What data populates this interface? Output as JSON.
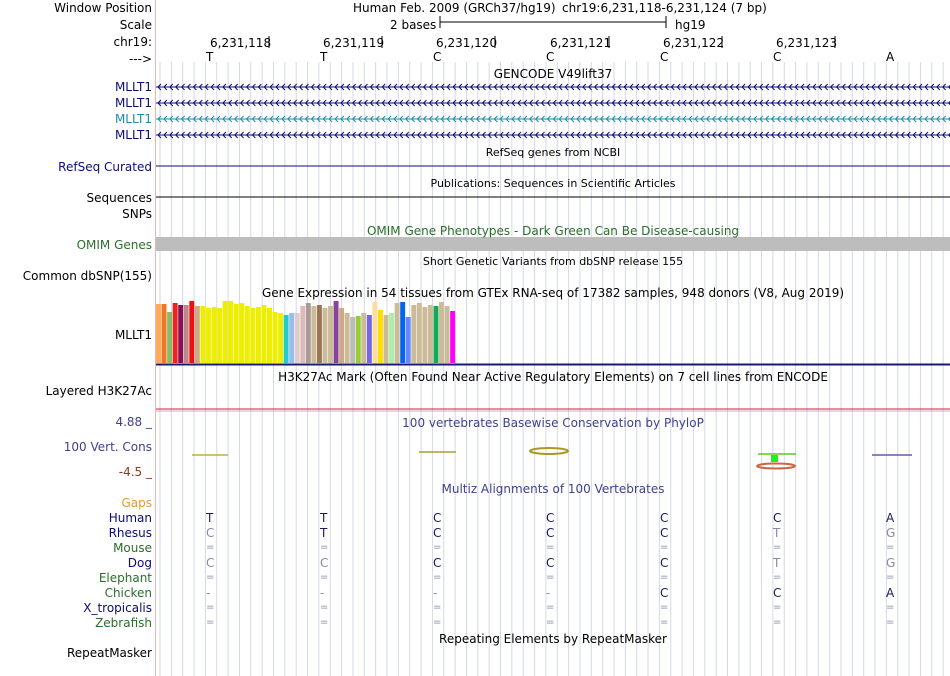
{
  "labels": {
    "window_position": "Window Position",
    "scale": "Scale",
    "chrom": "chr19:",
    "strand": "--->",
    "gencode_rows": [
      "MLLT1",
      "MLLT1",
      "MLLT1",
      "MLLT1"
    ],
    "refseq": "RefSeq Curated",
    "sequences": "Sequences",
    "snps": "SNPs",
    "omim": "OMIM Genes",
    "dbsnp": "Common dbSNP(155)",
    "gtex": "MLLT1",
    "h3k27ac": "Layered H3K27Ac",
    "cons_max": "4.88 _",
    "cons_name": "100 Vert. Cons",
    "cons_min": "-4.5 _",
    "gaps": "Gaps",
    "species": [
      "Human",
      "Rhesus",
      "Mouse",
      "Dog",
      "Elephant",
      "Chicken",
      "X_tropicalis",
      "Zebrafish"
    ],
    "repeatmasker": "RepeatMasker"
  },
  "header": {
    "assembly": "Human Feb. 2009 (GRCh37/hg19)",
    "position": "chr19:6,231,118-6,231,124 (7 bp)",
    "scale_text": "2 bases",
    "scale_db": "hg19",
    "coords": [
      "6,231,118",
      "6,231,119",
      "6,231,120",
      "6,231,121",
      "6,231,122",
      "6,231,123"
    ],
    "bases": [
      "T",
      "T",
      "C",
      "C",
      "C",
      "C",
      "A"
    ]
  },
  "tracks": {
    "gencode_title": "GENCODE V49lift37",
    "refseq_title": "RefSeq genes from NCBI",
    "publications_title": "Publications: Sequences in Scientific Articles",
    "omim_title": "OMIM Gene Phenotypes - Dark Green Can Be Disease-causing",
    "dbsnp_title": "Short Genetic Variants from dbSNP release 155",
    "gtex_title": "Gene Expression in 54 tissues from GTEx RNA-seq of 17382 samples, 948 donors (V8, Aug 2019)",
    "h3k27ac_title": "H3K27Ac Mark (Often Found Near Active Regulatory Elements) on 7 cell lines from ENCODE",
    "phylop_title": "100 vertebrates Basewise Conservation by PhyloP",
    "multiz_title": "Multiz Alignments of 100 Vertebrates",
    "repeatmasker_title": "Repeating Elements by RepeatMasker"
  },
  "gtex_bars": {
    "heights": [
      0.95,
      0.95,
      0.82,
      0.97,
      0.93,
      0.94,
      1.0,
      0.92,
      0.92,
      0.88,
      0.9,
      0.88,
      1.0,
      1.0,
      0.95,
      0.96,
      0.92,
      0.88,
      0.9,
      0.94,
      0.88,
      0.82,
      0.8,
      0.78,
      0.8,
      0.8,
      0.92,
      0.97,
      0.92,
      0.94,
      0.88,
      0.92,
      1.0,
      0.88,
      0.8,
      0.74,
      0.76,
      0.8,
      0.78,
      0.98,
      0.86,
      0.78,
      0.8,
      0.96,
      0.98,
      0.74,
      0.94,
      0.96,
      0.9,
      0.94,
      0.92,
      0.98,
      0.92,
      0.84
    ],
    "colors": [
      "#ffaa55",
      "#ee7722",
      "#88bb66",
      "#ee2222",
      "#881155",
      "#bb8888",
      "#ee1111",
      "#ccaa88",
      "#eeee00",
      "#eeee00",
      "#eeee00",
      "#eeee00",
      "#eeee00",
      "#eeee00",
      "#eeee00",
      "#eeee00",
      "#eeee00",
      "#eeee00",
      "#eeee00",
      "#eeee00",
      "#eeee00",
      "#eeee00",
      "#eeee00",
      "#22cccc",
      "#99bbee",
      "#ddcccc",
      "#ddbbbb",
      "#aa9999",
      "#ccbb99",
      "#997755",
      "#ccbb99",
      "#ccbb99",
      "#884499",
      "#ccaa88",
      "#ccbb99",
      "#bbbbbb",
      "#99cc33",
      "#ccbb99",
      "#7766dd",
      "#ffdd99",
      "#ffdd00",
      "#ccbb99",
      "#aaeeaa",
      "#ccbb99",
      "#0066ee",
      "#6688ff",
      "#ccbb99",
      "#ccbb99",
      "#ccbb99",
      "#ccbb99",
      "#11aa55",
      "#ccbb99",
      "#ccbb99",
      "#ff00ff"
    ]
  },
  "alignment": [
    [
      "T",
      "T",
      "C",
      "C",
      "C",
      "C",
      "A"
    ],
    [
      "C",
      "T",
      "C",
      "C",
      "C",
      "T",
      "G"
    ],
    [
      "=",
      "=",
      "=",
      "=",
      "=",
      "=",
      "="
    ],
    [
      "C",
      "C",
      "C",
      "C",
      "C",
      "T",
      "G"
    ],
    [
      "=",
      "=",
      "=",
      "=",
      "=",
      "=",
      "="
    ],
    [
      "-",
      "-",
      "-",
      "-",
      "C",
      "C",
      "A"
    ],
    [
      "=",
      "=",
      "=",
      "=",
      "=",
      "=",
      "="
    ],
    [
      "=",
      "=",
      "=",
      "=",
      "=",
      "=",
      "="
    ]
  ],
  "alignment_styles": [
    [
      "match",
      "match",
      "match",
      "match",
      "match",
      "match",
      "match"
    ],
    [
      "diff",
      "match",
      "match",
      "match",
      "match",
      "diff",
      "diff"
    ],
    [
      "eq",
      "eq",
      "eq",
      "eq",
      "eq",
      "eq",
      "eq"
    ],
    [
      "diff",
      "diff",
      "match",
      "match",
      "match",
      "diff",
      "diff"
    ],
    [
      "eq",
      "eq",
      "eq",
      "eq",
      "eq",
      "eq",
      "eq"
    ],
    [
      "dash",
      "dash",
      "dash",
      "dash",
      "match",
      "match",
      "match"
    ],
    [
      "eq",
      "eq",
      "eq",
      "eq",
      "eq",
      "eq",
      "eq"
    ],
    [
      "eq",
      "eq",
      "eq",
      "eq",
      "eq",
      "eq",
      "eq"
    ]
  ],
  "colors": {
    "gene_navy": "#0c0c78",
    "gene_teal": "#1e8caa",
    "omim_green": "#2a6e2a",
    "cons_blue": "#3f3f8f",
    "cons_min": "#8b3a1a",
    "gaps_orange": "#e39b2c",
    "h3k_red": "#d4184a",
    "omim_bar": "#bdbdbd"
  }
}
